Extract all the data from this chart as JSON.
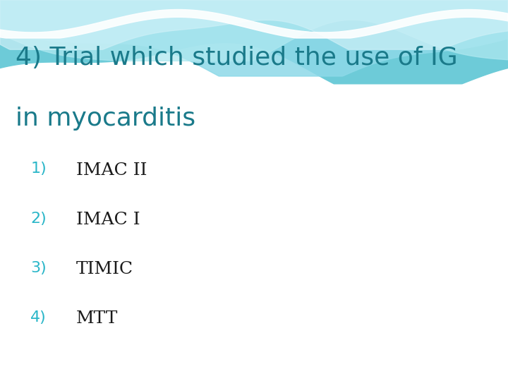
{
  "title_line1": "4) Trial which studied the use of IG",
  "title_line2": "in myocarditis",
  "title_color": "#1a7a8a",
  "options": [
    {
      "num": "1)",
      "text": "IMAC II"
    },
    {
      "num": "2)",
      "text": "IMAC I"
    },
    {
      "num": "3)",
      "text": "TIMIC"
    },
    {
      "num": "4)",
      "text": "MTT"
    }
  ],
  "num_color": "#29b6c8",
  "text_color": "#1a1a1a",
  "bg_color": "#ffffff",
  "title_fontsize": 26,
  "option_num_fontsize": 16,
  "option_text_fontsize": 18,
  "wave_colors": [
    "#6dcbd8",
    "#9adce6",
    "#b8eaf0",
    "#d8f2f7"
  ],
  "wave_highlight": "#e8f8fb"
}
